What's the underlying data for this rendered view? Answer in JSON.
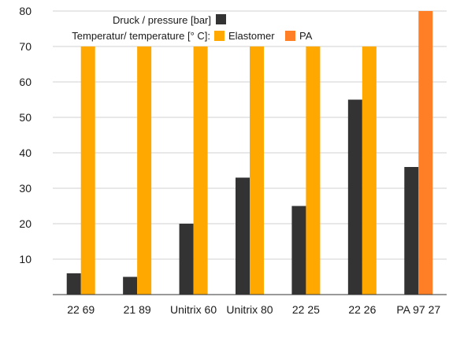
{
  "chart_data": {
    "type": "bar",
    "categories": [
      "22 69",
      "21  89",
      "Unitrix 60",
      "Unitrix 80",
      "22 25",
      "22 26",
      "PA 97 27"
    ],
    "series": [
      {
        "name": "Druck / pressure [bar]",
        "values": [
          6,
          5,
          20,
          33,
          25,
          55,
          36
        ],
        "color": "#333333"
      },
      {
        "name": "Temperatur/ temperature [°C]",
        "values": [
          70,
          70,
          70,
          70,
          70,
          70,
          80
        ],
        "colors": [
          "#ffa800",
          "#ffa800",
          "#ffa800",
          "#ffa800",
          "#ffa800",
          "#ffa800",
          "#ff7f27"
        ]
      }
    ],
    "legend": {
      "pressure_label": "Druck / pressure [bar]",
      "temperature_label": "Temperatur/ temperature [° C]:",
      "elastomer_label": "Elastomer",
      "pa_label": "PA",
      "elastomer_color": "#ffa800",
      "pa_color": "#ff7f27"
    },
    "yticks": [
      "80",
      "70",
      "60",
      "50",
      "40",
      "30",
      "20",
      "10"
    ],
    "ylim": [
      0,
      80
    ],
    "grid": true,
    "legend_position": "top-left"
  }
}
